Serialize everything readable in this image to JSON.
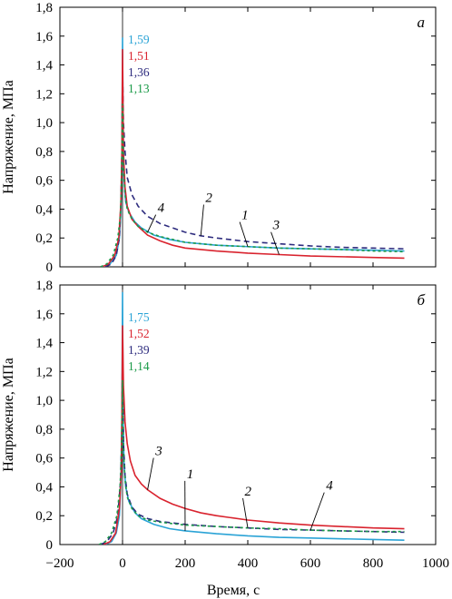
{
  "figure": {
    "xlabel": "Время, с",
    "ylabel": "Напряжение, МПа"
  },
  "chart_data": [
    {
      "type": "line",
      "panel_label": "а",
      "xlim": [
        -200,
        1000
      ],
      "ylim": [
        0,
        1.8
      ],
      "x_ticks": [
        -200,
        0,
        200,
        400,
        600,
        800,
        1000
      ],
      "y_ticks": [
        0,
        0.2,
        0.4,
        0.6,
        0.8,
        1.0,
        1.2,
        1.4,
        1.6,
        1.8
      ],
      "x_tick_labels": [
        "−200",
        "0",
        "200",
        "400",
        "600",
        "800",
        "1000"
      ],
      "y_tick_labels": [
        "0",
        "0,2",
        "0,4",
        "0,6",
        "0,8",
        "1,0",
        "1,2",
        "1,4",
        "1,6",
        "1,8"
      ],
      "grid": false,
      "peak_labels": [
        {
          "text": "1,59",
          "color": "#2aa3d6"
        },
        {
          "text": "1,51",
          "color": "#d9232e"
        },
        {
          "text": "1,36",
          "color": "#2e2c7e"
        },
        {
          "text": "1,13",
          "color": "#1a9a48"
        }
      ],
      "curve_labels": [
        {
          "text": "4",
          "x": 112,
          "y": 0.38
        },
        {
          "text": "2",
          "x": 265,
          "y": 0.45
        },
        {
          "text": "1",
          "x": 380,
          "y": 0.33
        },
        {
          "text": "3",
          "x": 480,
          "y": 0.26
        }
      ],
      "series": [
        {
          "name": "1",
          "color": "#2aa3d6",
          "dash": "",
          "points": [
            [
              -60,
              0
            ],
            [
              -40,
              0.02
            ],
            [
              -20,
              0.08
            ],
            [
              -10,
              0.2
            ],
            [
              -5,
              0.4
            ],
            [
              -2,
              0.8
            ],
            [
              0,
              1.59
            ],
            [
              2,
              0.9
            ],
            [
              5,
              0.6
            ],
            [
              10,
              0.45
            ],
            [
              20,
              0.38
            ],
            [
              40,
              0.31
            ],
            [
              60,
              0.27
            ],
            [
              100,
              0.22
            ],
            [
              150,
              0.19
            ],
            [
              200,
              0.17
            ],
            [
              300,
              0.15
            ],
            [
              400,
              0.14
            ],
            [
              500,
              0.13
            ],
            [
              600,
              0.125
            ],
            [
              700,
              0.12
            ],
            [
              800,
              0.115
            ],
            [
              900,
              0.11
            ]
          ]
        },
        {
          "name": "2",
          "color": "#2e2c7e",
          "dash": "6,4",
          "points": [
            [
              -55,
              0
            ],
            [
              -35,
              0.02
            ],
            [
              -20,
              0.08
            ],
            [
              -10,
              0.2
            ],
            [
              -5,
              0.45
            ],
            [
              -2,
              0.8
            ],
            [
              0,
              1.36
            ],
            [
              3,
              1.0
            ],
            [
              8,
              0.8
            ],
            [
              15,
              0.62
            ],
            [
              30,
              0.5
            ],
            [
              50,
              0.42
            ],
            [
              80,
              0.35
            ],
            [
              120,
              0.3
            ],
            [
              160,
              0.27
            ],
            [
              200,
              0.24
            ],
            [
              250,
              0.215
            ],
            [
              300,
              0.2
            ],
            [
              400,
              0.175
            ],
            [
              500,
              0.16
            ],
            [
              600,
              0.145
            ],
            [
              700,
              0.135
            ],
            [
              800,
              0.13
            ],
            [
              900,
              0.125
            ]
          ]
        },
        {
          "name": "3",
          "color": "#d9232e",
          "dash": "",
          "points": [
            [
              -65,
              0
            ],
            [
              -45,
              0.02
            ],
            [
              -25,
              0.08
            ],
            [
              -12,
              0.2
            ],
            [
              -5,
              0.45
            ],
            [
              -2,
              0.8
            ],
            [
              0,
              1.51
            ],
            [
              3,
              0.8
            ],
            [
              8,
              0.55
            ],
            [
              15,
              0.42
            ],
            [
              30,
              0.33
            ],
            [
              50,
              0.28
            ],
            [
              80,
              0.22
            ],
            [
              120,
              0.18
            ],
            [
              160,
              0.15
            ],
            [
              200,
              0.13
            ],
            [
              300,
              0.11
            ],
            [
              400,
              0.095
            ],
            [
              500,
              0.085
            ],
            [
              600,
              0.075
            ],
            [
              700,
              0.07
            ],
            [
              800,
              0.065
            ],
            [
              900,
              0.06
            ]
          ]
        },
        {
          "name": "4",
          "color": "#1a9a48",
          "dash": "3,3",
          "points": [
            [
              -70,
              0
            ],
            [
              -50,
              0.02
            ],
            [
              -30,
              0.08
            ],
            [
              -15,
              0.2
            ],
            [
              -7,
              0.35
            ],
            [
              -3,
              0.6
            ],
            [
              0,
              1.13
            ],
            [
              3,
              0.7
            ],
            [
              8,
              0.5
            ],
            [
              15,
              0.4
            ],
            [
              30,
              0.33
            ],
            [
              50,
              0.28
            ],
            [
              80,
              0.24
            ],
            [
              120,
              0.21
            ],
            [
              160,
              0.19
            ],
            [
              200,
              0.17
            ],
            [
              300,
              0.15
            ],
            [
              400,
              0.14
            ],
            [
              500,
              0.13
            ],
            [
              600,
              0.125
            ],
            [
              700,
              0.12
            ],
            [
              800,
              0.11
            ],
            [
              900,
              0.105
            ]
          ]
        }
      ]
    },
    {
      "type": "line",
      "panel_label": "б",
      "xlim": [
        -200,
        1000
      ],
      "ylim": [
        0,
        1.8
      ],
      "x_ticks": [
        -200,
        0,
        200,
        400,
        600,
        800,
        1000
      ],
      "y_ticks": [
        0,
        0.2,
        0.4,
        0.6,
        0.8,
        1.0,
        1.2,
        1.4,
        1.6,
        1.8
      ],
      "x_tick_labels": [
        "−200",
        "0",
        "200",
        "400",
        "600",
        "800",
        "1000"
      ],
      "y_tick_labels": [
        "0",
        "0,2",
        "0,4",
        "0,6",
        "0,8",
        "1,0",
        "1,2",
        "1,4",
        "1,6",
        "1,8"
      ],
      "grid": false,
      "peak_labels": [
        {
          "text": "1,75",
          "color": "#2aa3d6"
        },
        {
          "text": "1,52",
          "color": "#d9232e"
        },
        {
          "text": "1,39",
          "color": "#2e2c7e"
        },
        {
          "text": "1,14",
          "color": "#1a9a48"
        }
      ],
      "curve_labels": [
        {
          "text": "3",
          "x": 105,
          "y": 0.62
        },
        {
          "text": "1",
          "x": 205,
          "y": 0.46
        },
        {
          "text": "2",
          "x": 390,
          "y": 0.34
        },
        {
          "text": "4",
          "x": 650,
          "y": 0.38
        }
      ],
      "series": [
        {
          "name": "1",
          "color": "#2aa3d6",
          "dash": "",
          "points": [
            [
              -55,
              0
            ],
            [
              -35,
              0.02
            ],
            [
              -20,
              0.08
            ],
            [
              -10,
              0.2
            ],
            [
              -5,
              0.45
            ],
            [
              -2,
              0.9
            ],
            [
              0,
              1.75
            ],
            [
              2,
              0.85
            ],
            [
              5,
              0.55
            ],
            [
              10,
              0.4
            ],
            [
              20,
              0.3
            ],
            [
              40,
              0.22
            ],
            [
              60,
              0.18
            ],
            [
              100,
              0.14
            ],
            [
              150,
              0.11
            ],
            [
              200,
              0.095
            ],
            [
              300,
              0.075
            ],
            [
              400,
              0.06
            ],
            [
              500,
              0.05
            ],
            [
              600,
              0.045
            ],
            [
              700,
              0.04
            ],
            [
              800,
              0.035
            ],
            [
              900,
              0.03
            ]
          ]
        },
        {
          "name": "2",
          "color": "#2e2c7e",
          "dash": "6,4",
          "points": [
            [
              -70,
              0
            ],
            [
              -50,
              0.02
            ],
            [
              -30,
              0.08
            ],
            [
              -15,
              0.2
            ],
            [
              -6,
              0.45
            ],
            [
              -2,
              0.8
            ],
            [
              0,
              1.39
            ],
            [
              3,
              0.7
            ],
            [
              8,
              0.48
            ],
            [
              15,
              0.35
            ],
            [
              30,
              0.26
            ],
            [
              50,
              0.21
            ],
            [
              80,
              0.18
            ],
            [
              120,
              0.16
            ],
            [
              160,
              0.15
            ],
            [
              200,
              0.14
            ],
            [
              300,
              0.125
            ],
            [
              400,
              0.115
            ],
            [
              500,
              0.105
            ],
            [
              600,
              0.1
            ],
            [
              700,
              0.095
            ],
            [
              800,
              0.09
            ],
            [
              900,
              0.085
            ]
          ]
        },
        {
          "name": "3",
          "color": "#d9232e",
          "dash": "",
          "points": [
            [
              -60,
              0
            ],
            [
              -40,
              0.02
            ],
            [
              -22,
              0.08
            ],
            [
              -10,
              0.25
            ],
            [
              -4,
              0.5
            ],
            [
              -2,
              0.9
            ],
            [
              0,
              1.52
            ],
            [
              3,
              1.1
            ],
            [
              8,
              0.85
            ],
            [
              15,
              0.7
            ],
            [
              25,
              0.58
            ],
            [
              40,
              0.48
            ],
            [
              60,
              0.42
            ],
            [
              80,
              0.38
            ],
            [
              120,
              0.32
            ],
            [
              160,
              0.28
            ],
            [
              200,
              0.25
            ],
            [
              250,
              0.22
            ],
            [
              300,
              0.2
            ],
            [
              400,
              0.17
            ],
            [
              500,
              0.15
            ],
            [
              600,
              0.135
            ],
            [
              700,
              0.125
            ],
            [
              800,
              0.115
            ],
            [
              900,
              0.11
            ]
          ]
        },
        {
          "name": "4",
          "color": "#1a9a48",
          "dash": "3,3",
          "points": [
            [
              -75,
              0
            ],
            [
              -55,
              0.02
            ],
            [
              -35,
              0.08
            ],
            [
              -18,
              0.2
            ],
            [
              -8,
              0.4
            ],
            [
              -3,
              0.65
            ],
            [
              0,
              1.14
            ],
            [
              3,
              0.65
            ],
            [
              8,
              0.45
            ],
            [
              15,
              0.33
            ],
            [
              30,
              0.25
            ],
            [
              50,
              0.2
            ],
            [
              80,
              0.17
            ],
            [
              120,
              0.155
            ],
            [
              160,
              0.145
            ],
            [
              200,
              0.135
            ],
            [
              300,
              0.125
            ],
            [
              400,
              0.115
            ],
            [
              500,
              0.11
            ],
            [
              600,
              0.1
            ],
            [
              700,
              0.095
            ],
            [
              800,
              0.09
            ],
            [
              900,
              0.09
            ]
          ]
        }
      ]
    }
  ]
}
